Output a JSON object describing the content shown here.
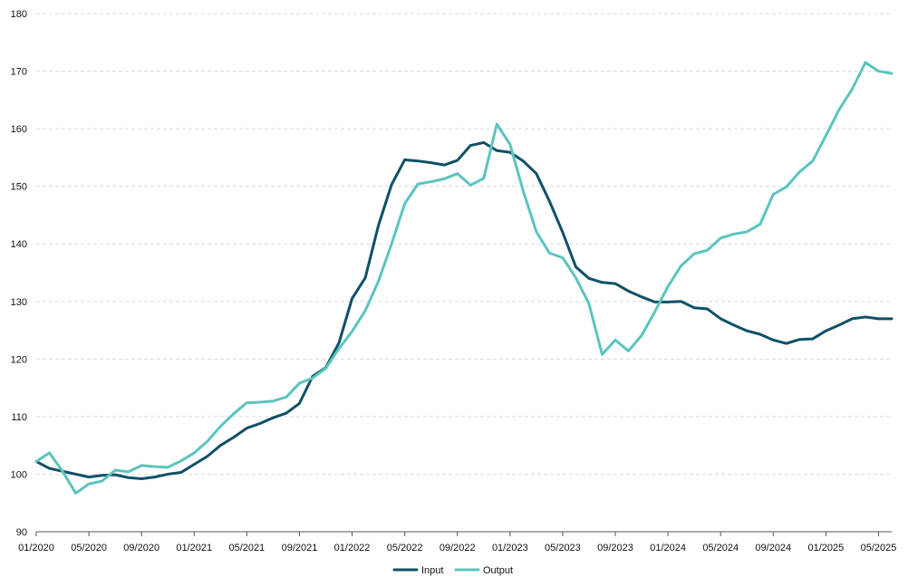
{
  "chart_data": {
    "type": "line",
    "title": "",
    "xlabel": "",
    "ylabel": "",
    "ylim": [
      90,
      180
    ],
    "yticks": [
      90,
      100,
      110,
      120,
      130,
      140,
      150,
      160,
      170,
      180
    ],
    "xtick_labels": [
      "01/2020",
      "05/2020",
      "09/2020",
      "01/2021",
      "05/2021",
      "09/2021",
      "01/2022",
      "05/2022",
      "09/2022",
      "01/2023",
      "05/2023",
      "09/2023",
      "01/2024",
      "05/2024",
      "09/2024",
      "01/2025",
      "05/2025"
    ],
    "x": [
      "01/2020",
      "02/2020",
      "03/2020",
      "04/2020",
      "05/2020",
      "06/2020",
      "07/2020",
      "08/2020",
      "09/2020",
      "10/2020",
      "11/2020",
      "12/2020",
      "01/2021",
      "02/2021",
      "03/2021",
      "04/2021",
      "05/2021",
      "06/2021",
      "07/2021",
      "08/2021",
      "09/2021",
      "10/2021",
      "11/2021",
      "12/2021",
      "01/2022",
      "02/2022",
      "03/2022",
      "04/2022",
      "05/2022",
      "06/2022",
      "07/2022",
      "08/2022",
      "09/2022",
      "10/2022",
      "11/2022",
      "12/2022",
      "01/2023",
      "02/2023",
      "03/2023",
      "04/2023",
      "05/2023",
      "06/2023",
      "07/2023",
      "08/2023",
      "09/2023",
      "10/2023",
      "11/2023",
      "12/2023",
      "01/2024",
      "02/2024",
      "03/2024",
      "04/2024",
      "05/2024",
      "06/2024",
      "07/2024",
      "08/2024",
      "09/2024",
      "10/2024",
      "11/2024",
      "12/2024",
      "01/2025",
      "02/2025",
      "03/2025",
      "04/2025",
      "05/2025",
      "06/2025"
    ],
    "series": [
      {
        "name": "Input",
        "color": "#0f5068",
        "values": [
          102.2,
          101.0,
          100.5,
          100.0,
          99.5,
          99.8,
          99.9,
          99.4,
          99.2,
          99.5,
          100.0,
          100.3,
          101.7,
          103.1,
          105.0,
          106.4,
          108.0,
          108.8,
          109.8,
          110.6,
          112.3,
          117.0,
          118.5,
          122.8,
          130.5,
          134.1,
          143.2,
          150.3,
          154.6,
          154.4,
          154.1,
          153.7,
          154.5,
          157.1,
          157.6,
          156.2,
          155.9,
          154.4,
          152.2,
          147.4,
          142.0,
          136.0,
          134.0,
          133.3,
          133.1,
          131.8,
          130.8,
          129.9,
          129.9,
          130.0,
          128.9,
          128.7,
          127.0,
          125.9,
          124.9,
          124.3,
          123.3,
          122.7,
          123.4,
          123.5,
          124.9,
          125.9,
          127.0,
          127.3,
          127.0,
          127.0
        ]
      },
      {
        "name": "Output",
        "color": "#5bc4be",
        "values": [
          102.2,
          103.7,
          100.5,
          96.7,
          98.3,
          98.8,
          100.7,
          100.4,
          101.5,
          101.3,
          101.2,
          102.3,
          103.7,
          105.7,
          108.3,
          110.5,
          112.4,
          112.5,
          112.7,
          113.4,
          115.8,
          116.7,
          118.4,
          121.8,
          124.8,
          128.4,
          133.5,
          140.0,
          147.0,
          150.4,
          150.8,
          151.3,
          152.2,
          150.2,
          151.4,
          160.8,
          157.3,
          149.2,
          142.1,
          138.4,
          137.6,
          134.1,
          129.6,
          120.8,
          123.3,
          121.4,
          124.1,
          128.2,
          132.6,
          136.2,
          138.3,
          138.9,
          141.0,
          141.7,
          142.1,
          143.4,
          148.6,
          149.9,
          152.5,
          154.4,
          158.8,
          163.3,
          166.9,
          171.5,
          170.0,
          169.6
        ]
      }
    ],
    "legend": {
      "position": "bottom-center",
      "entries": [
        "Input",
        "Output"
      ]
    },
    "grid": {
      "y": true,
      "x": false,
      "style": "dashed"
    }
  }
}
